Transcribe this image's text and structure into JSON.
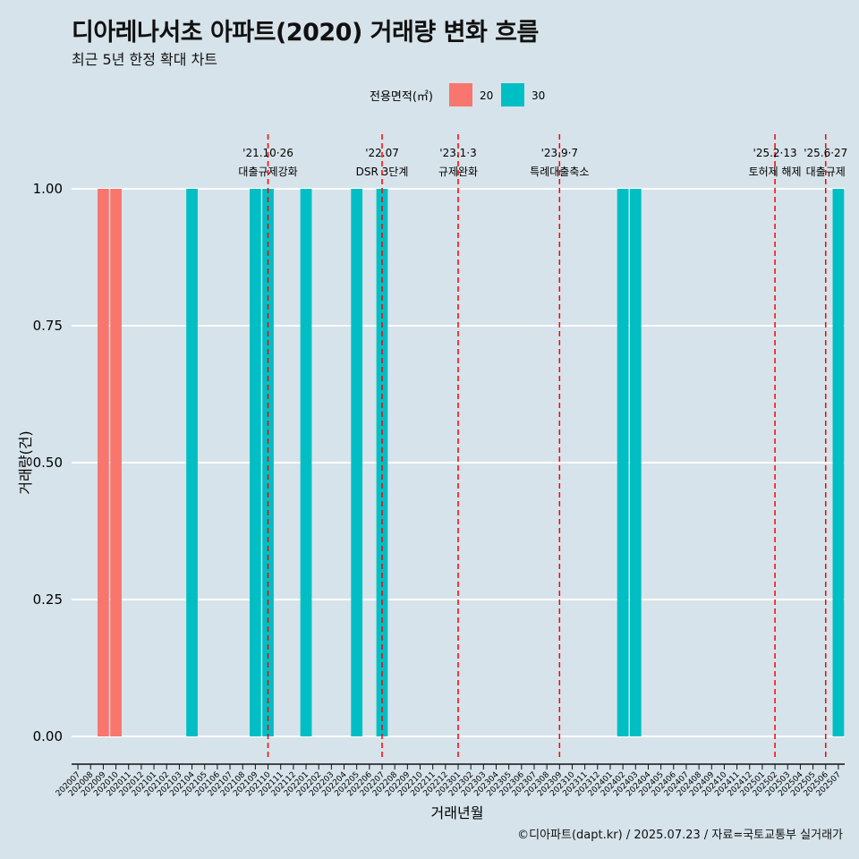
{
  "title": "디아레나서초 아파트(2020) 거래량 변화 흐름",
  "subtitle": "최근 5년 한정 확대 차트",
  "caption": "©디아파트(dapt.kr) / 2025.07.23 / 자료=국토교통부 실거래가",
  "chart_data": {
    "type": "bar",
    "xlabel": "거래년월",
    "ylabel": "거래량(건)",
    "ylim": [
      0,
      1
    ],
    "yticks": [
      "0.00",
      "0.25",
      "0.50",
      "0.75",
      "1.00"
    ],
    "grid": true,
    "legend": {
      "title": "전용면적(㎡)",
      "position": "top",
      "entries": [
        {
          "label": "20",
          "color": "#f8766d"
        },
        {
          "label": "30",
          "color": "#00bfc4"
        }
      ]
    },
    "categories": [
      "202007",
      "202008",
      "202009",
      "202010",
      "202011",
      "202012",
      "202101",
      "202102",
      "202103",
      "202104",
      "202105",
      "202106",
      "202107",
      "202108",
      "202109",
      "202110",
      "202111",
      "202112",
      "202201",
      "202202",
      "202203",
      "202204",
      "202205",
      "202206",
      "202207",
      "202208",
      "202209",
      "202210",
      "202211",
      "202212",
      "202301",
      "202302",
      "202303",
      "202304",
      "202305",
      "202306",
      "202307",
      "202308",
      "202309",
      "202310",
      "202311",
      "202312",
      "202401",
      "202402",
      "202403",
      "202404",
      "202405",
      "202406",
      "202407",
      "202408",
      "202409",
      "202410",
      "202411",
      "202412",
      "202501",
      "202502",
      "202503",
      "202504",
      "202505",
      "202506",
      "202507"
    ],
    "series": [
      {
        "name": "20",
        "color": "#f8766d",
        "points": [
          [
            "202009",
            1
          ],
          [
            "202010",
            1
          ]
        ]
      },
      {
        "name": "30",
        "color": "#00bfc4",
        "points": [
          [
            "202104",
            1
          ],
          [
            "202109",
            1
          ],
          [
            "202110",
            1
          ],
          [
            "202201",
            1
          ],
          [
            "202205",
            1
          ],
          [
            "202207",
            1
          ],
          [
            "202402",
            1
          ],
          [
            "202403",
            1
          ],
          [
            "202507",
            1
          ]
        ]
      }
    ],
    "annotations": [
      {
        "x": "202110",
        "label": [
          "'21.10·26",
          "대출규제강화"
        ]
      },
      {
        "x": "202207",
        "label": [
          "'22.07",
          "DSR 3단계"
        ]
      },
      {
        "x": "202301",
        "label": [
          "'23.1·3",
          "규제완화"
        ]
      },
      {
        "x": "202309",
        "label": [
          "'23.9·7",
          "특례대출축소"
        ]
      },
      {
        "x": "202502",
        "label": [
          "'25.2·13",
          "토허제 해제"
        ]
      },
      {
        "x": "202506",
        "label": [
          "'25.6·27",
          "대출규제"
        ]
      }
    ],
    "annotation_color": "#ff0000"
  }
}
